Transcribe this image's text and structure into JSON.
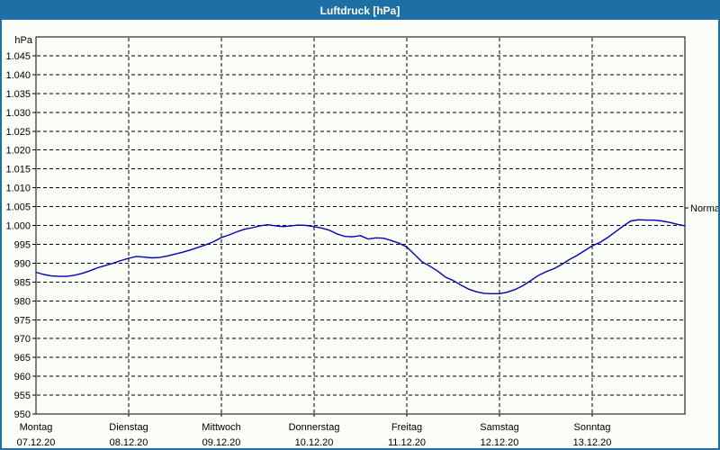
{
  "window": {
    "title": "Luftdruck [hPa]"
  },
  "colors": {
    "accent": "#1d6fa5",
    "background": "#fbfdf8",
    "titlebar_text": "#ffffff",
    "curve": "#0000bb",
    "grid": "#000000",
    "axis_text": "#000000"
  },
  "axis": {
    "unit_label": "hPa",
    "y_ticks": [
      {
        "label": "1.045",
        "value": 1045
      },
      {
        "label": "1.040",
        "value": 1040
      },
      {
        "label": "1.035",
        "value": 1035
      },
      {
        "label": "1.030",
        "value": 1030
      },
      {
        "label": "1.025",
        "value": 1025
      },
      {
        "label": "1.020",
        "value": 1020
      },
      {
        "label": "1.015",
        "value": 1015
      },
      {
        "label": "1.010",
        "value": 1010
      },
      {
        "label": "1.005",
        "value": 1005
      },
      {
        "label": "1.000",
        "value": 1000
      },
      {
        "label": "995",
        "value": 995
      },
      {
        "label": "990",
        "value": 990
      },
      {
        "label": "985",
        "value": 985
      },
      {
        "label": "980",
        "value": 980
      },
      {
        "label": "975",
        "value": 975
      },
      {
        "label": "970",
        "value": 970
      },
      {
        "label": "965",
        "value": 965
      },
      {
        "label": "960",
        "value": 960
      },
      {
        "label": "955",
        "value": 955
      },
      {
        "label": "950",
        "value": 950
      }
    ],
    "x_days": [
      {
        "name": "Montag",
        "date": "07.12.20"
      },
      {
        "name": "Dienstag",
        "date": "08.12.20"
      },
      {
        "name": "Mittwoch",
        "date": "09.12.20"
      },
      {
        "name": "Donnerstag",
        "date": "10.12.20"
      },
      {
        "name": "Freitag",
        "date": "11.12.20"
      },
      {
        "name": "Samstag",
        "date": "12.12.20"
      },
      {
        "name": "Sonntag",
        "date": "13.12.20"
      }
    ]
  },
  "annotations": {
    "normal_label": "Normal",
    "normal_value": 1004.7
  },
  "chart_data": {
    "type": "line",
    "title": "Luftdruck [hPa]",
    "ylabel": "hPa",
    "ylim": [
      950,
      1050
    ],
    "grid": "dashed",
    "x_categories": [
      "Montag 07.12.20",
      "Dienstag 08.12.20",
      "Mittwoch 09.12.20",
      "Donnerstag 10.12.20",
      "Freitag 11.12.20",
      "Samstag 12.12.20",
      "Sonntag 13.12.20"
    ],
    "sample_interval_hours": 2,
    "annotations": [
      {
        "label": "Normal",
        "y": 1004.7,
        "position": "right-axis"
      }
    ],
    "series": [
      {
        "name": "Luftdruck",
        "color": "#0000bb",
        "values": [
          987.6,
          987.0,
          986.6,
          986.5,
          986.5,
          986.8,
          987.3,
          988.0,
          988.8,
          989.4,
          990.0,
          990.7,
          991.3,
          991.8,
          991.6,
          991.4,
          991.5,
          991.9,
          992.4,
          992.9,
          993.5,
          994.2,
          994.9,
          995.7,
          996.8,
          997.5,
          998.3,
          999.0,
          999.4,
          999.9,
          1000.2,
          999.9,
          999.7,
          999.9,
          1000.1,
          1000.0,
          999.7,
          999.3,
          998.7,
          997.7,
          997.1,
          997.0,
          997.3,
          996.4,
          996.7,
          996.6,
          996.0,
          995.3,
          994.3,
          992.3,
          990.3,
          989.2,
          987.9,
          986.3,
          985.4,
          984.2,
          983.1,
          982.4,
          982.0,
          981.9,
          981.9,
          982.3,
          983.0,
          984.0,
          985.3,
          986.7,
          987.7,
          988.5,
          989.6,
          990.9,
          992.0,
          993.3,
          994.6,
          995.5,
          996.8,
          998.3,
          999.8,
          1001.2,
          1001.5,
          1001.4,
          1001.4,
          1001.2,
          1000.8,
          1000.3,
          999.9
        ]
      }
    ]
  }
}
